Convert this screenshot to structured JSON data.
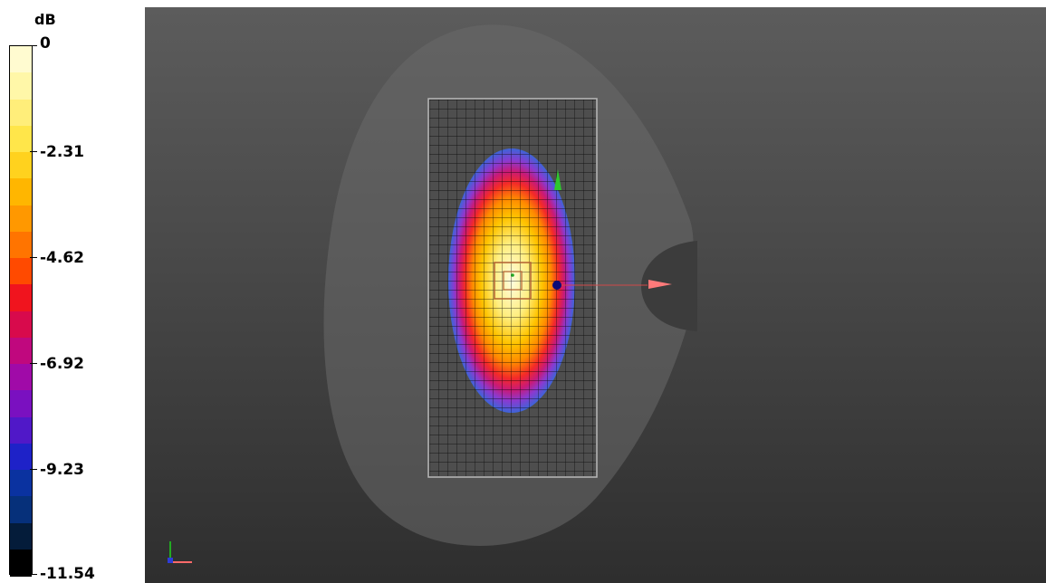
{
  "legend": {
    "unit": "dB",
    "labels": [
      "0",
      "-2.31",
      "-4.62",
      "-6.92",
      "-9.23",
      "-11.54"
    ],
    "colors": [
      "#fffbd0",
      "#fff7a8",
      "#ffee7a",
      "#ffe64a",
      "#ffd21e",
      "#ffb600",
      "#ff9800",
      "#ff7400",
      "#ff4a00",
      "#f0141e",
      "#d80a4c",
      "#c0087e",
      "#a00aa8",
      "#7a10c0",
      "#5018c8",
      "#1e22c8",
      "#0a32a0",
      "#06307a",
      "#041c3a",
      "#000000"
    ]
  },
  "viewport": {
    "background_top": "#5c5c5c",
    "background_bottom": "#2e2e2e",
    "axis_icon": "xyz-axis-icon"
  }
}
